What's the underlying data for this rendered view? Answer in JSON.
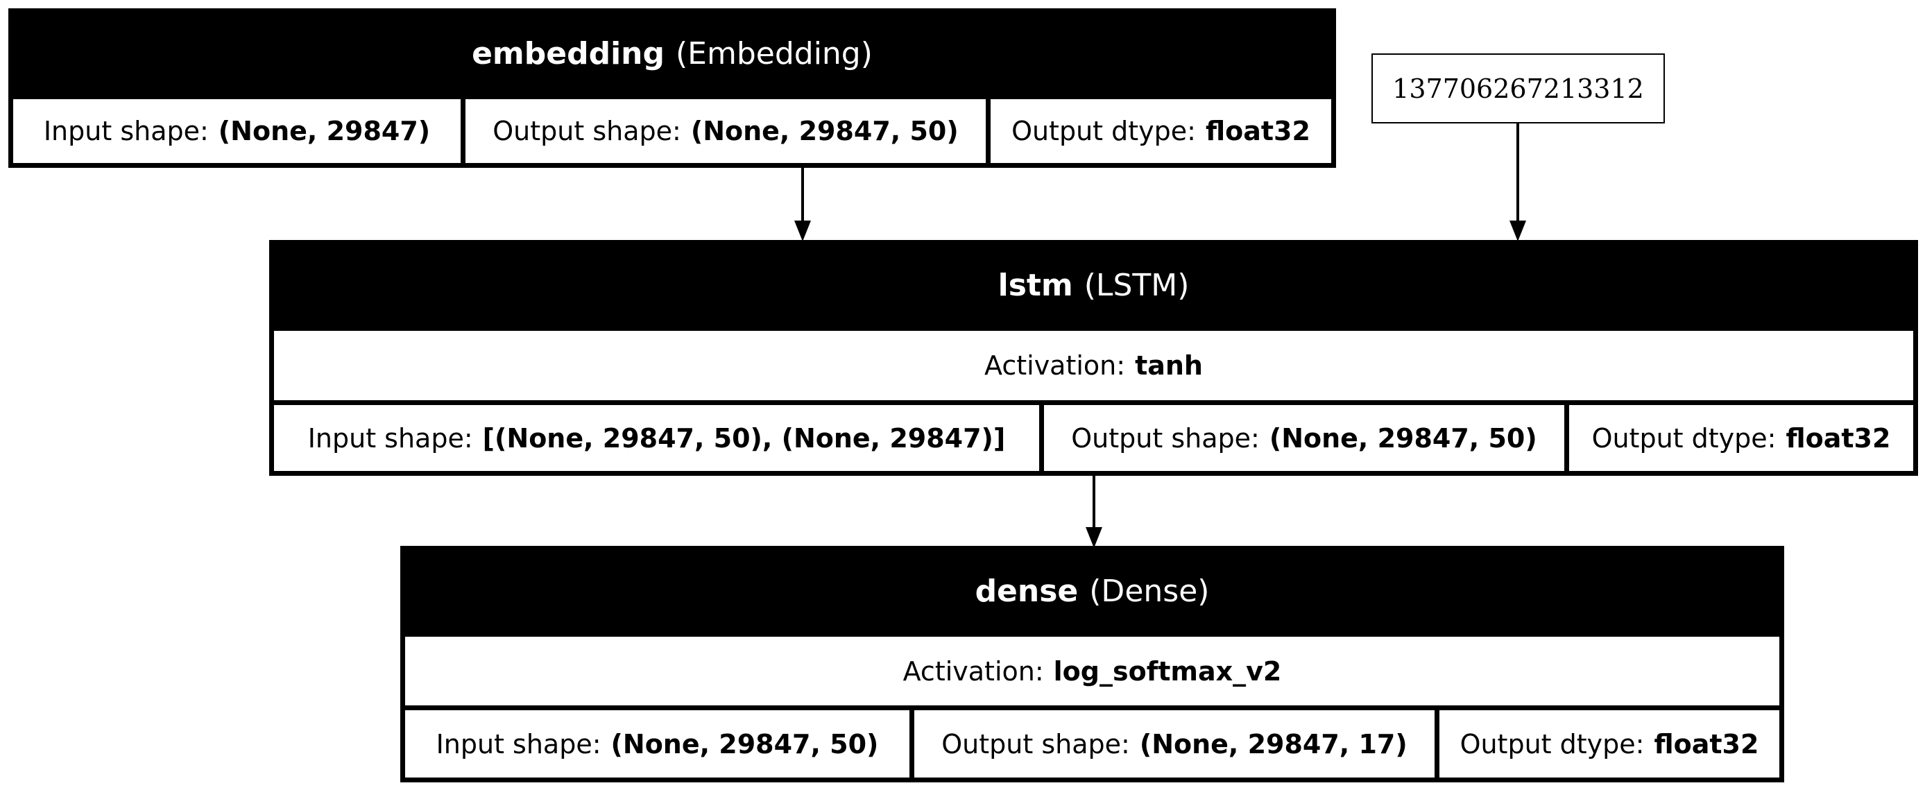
{
  "input_node": {
    "label": "137706267213312"
  },
  "layers": {
    "embedding": {
      "name": "embedding",
      "type": "(Embedding)",
      "input_label": "Input shape:",
      "input_value": "(None, 29847)",
      "output_label": "Output shape:",
      "output_value": "(None, 29847, 50)",
      "dtype_label": "Output dtype:",
      "dtype_value": "float32"
    },
    "lstm": {
      "name": "lstm",
      "type": "(LSTM)",
      "activation_label": "Activation:",
      "activation_value": "tanh",
      "input_label": "Input shape:",
      "input_value": "[(None, 29847, 50), (None, 29847)]",
      "output_label": "Output shape:",
      "output_value": "(None, 29847, 50)",
      "dtype_label": "Output dtype:",
      "dtype_value": "float32"
    },
    "dense": {
      "name": "dense",
      "type": "(Dense)",
      "activation_label": "Activation:",
      "activation_value": "log_softmax_v2",
      "input_label": "Input shape:",
      "input_value": "(None, 29847, 50)",
      "output_label": "Output shape:",
      "output_value": "(None, 29847, 17)",
      "dtype_label": "Output dtype:",
      "dtype_value": "float32"
    }
  }
}
